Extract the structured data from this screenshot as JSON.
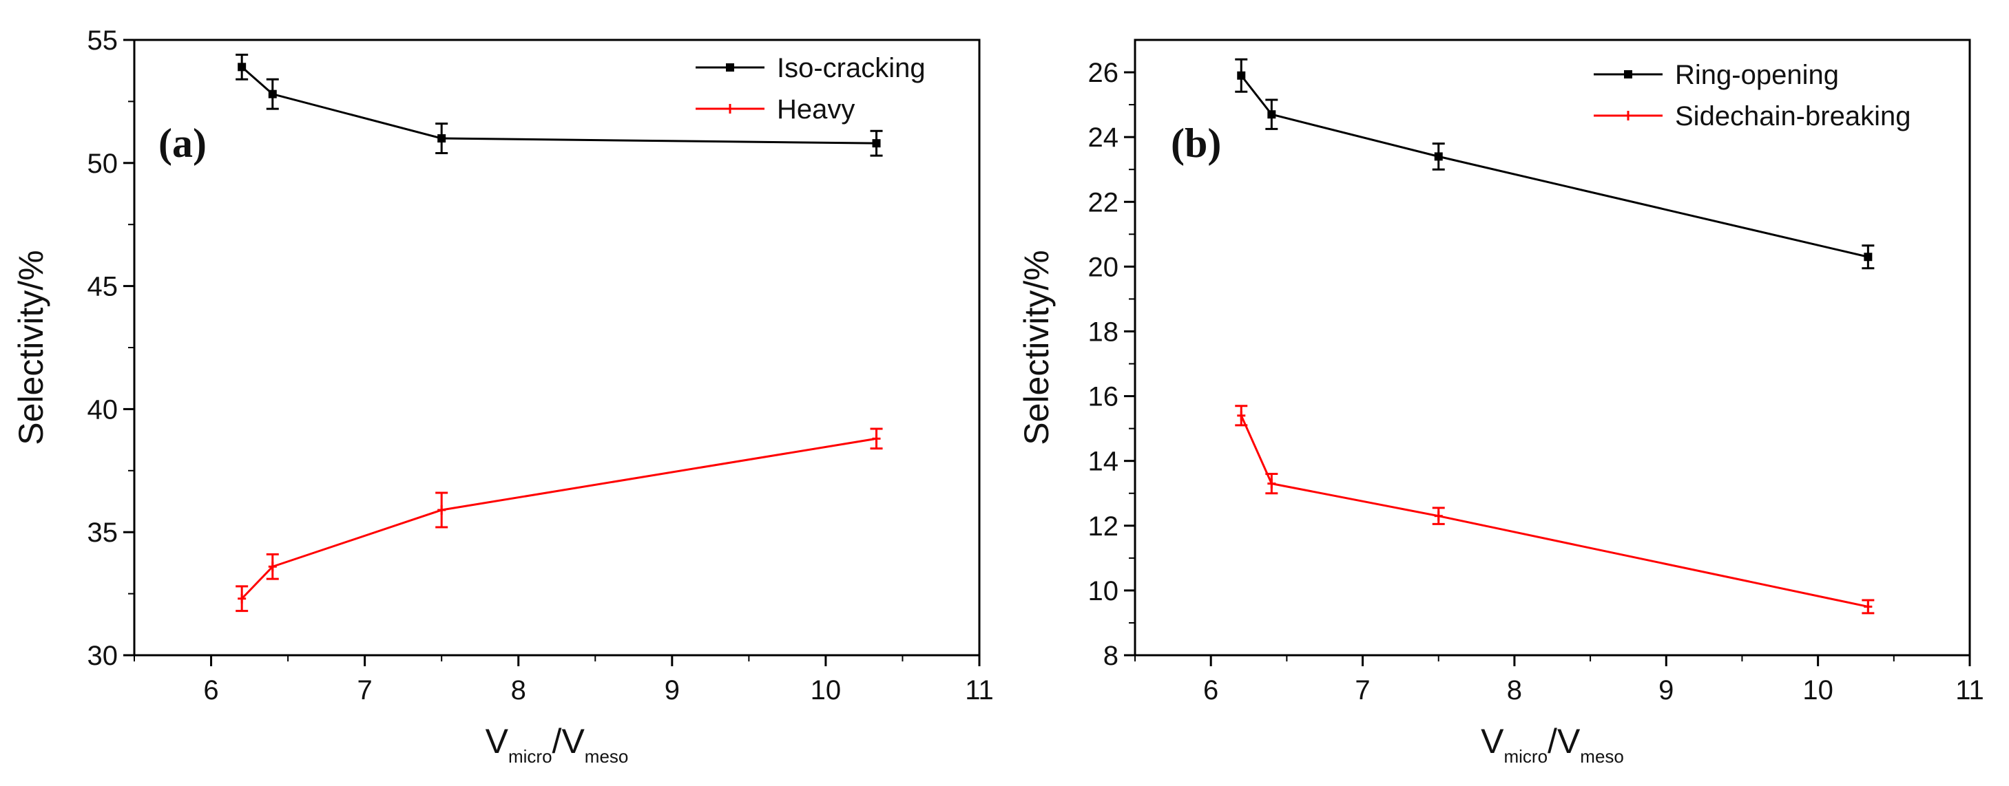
{
  "chart_data": [
    {
      "type": "line",
      "panel_label": "(a)",
      "xlabel_main": "V",
      "xlabel_sub1": "micro",
      "xlabel_slash": "/V",
      "xlabel_sub2": "meso",
      "ylabel": "Selectivity/%",
      "xlim": [
        5.5,
        11
      ],
      "ylim": [
        30,
        55
      ],
      "xticks": [
        6,
        7,
        8,
        9,
        10,
        11
      ],
      "yticks": [
        30,
        35,
        40,
        45,
        50,
        55
      ],
      "legend_position": "top-right",
      "series": [
        {
          "name": "Iso-cracking",
          "color": "#000000",
          "x": [
            6.2,
            6.4,
            7.5,
            10.33
          ],
          "y": [
            53.9,
            52.8,
            51.0,
            50.8
          ],
          "err": [
            0.5,
            0.6,
            0.6,
            0.5
          ]
        },
        {
          "name": "Heavy",
          "color": "#ff0000",
          "x": [
            6.2,
            6.4,
            7.5,
            10.33
          ],
          "y": [
            32.3,
            33.6,
            35.9,
            38.8
          ],
          "err": [
            0.5,
            0.5,
            0.7,
            0.4
          ]
        }
      ]
    },
    {
      "type": "line",
      "panel_label": "(b)",
      "xlabel_main": "V",
      "xlabel_sub1": "micro",
      "xlabel_slash": "/V",
      "xlabel_sub2": "meso",
      "ylabel": "Selectivity/%",
      "xlim": [
        5.5,
        11
      ],
      "ylim": [
        8,
        27
      ],
      "xticks": [
        6,
        7,
        8,
        9,
        10,
        11
      ],
      "yticks": [
        8,
        10,
        12,
        14,
        16,
        18,
        20,
        22,
        24,
        26
      ],
      "legend_position": "top-right",
      "series": [
        {
          "name": "Ring-opening",
          "color": "#000000",
          "x": [
            6.2,
            6.4,
            7.5,
            10.33
          ],
          "y": [
            25.9,
            24.7,
            23.4,
            20.3
          ],
          "err": [
            0.5,
            0.45,
            0.4,
            0.35
          ]
        },
        {
          "name": "Sidechain-breaking",
          "color": "#ff0000",
          "x": [
            6.2,
            6.4,
            7.5,
            10.33
          ],
          "y": [
            15.4,
            13.3,
            12.3,
            9.5
          ],
          "err": [
            0.3,
            0.3,
            0.25,
            0.2
          ]
        }
      ]
    }
  ]
}
